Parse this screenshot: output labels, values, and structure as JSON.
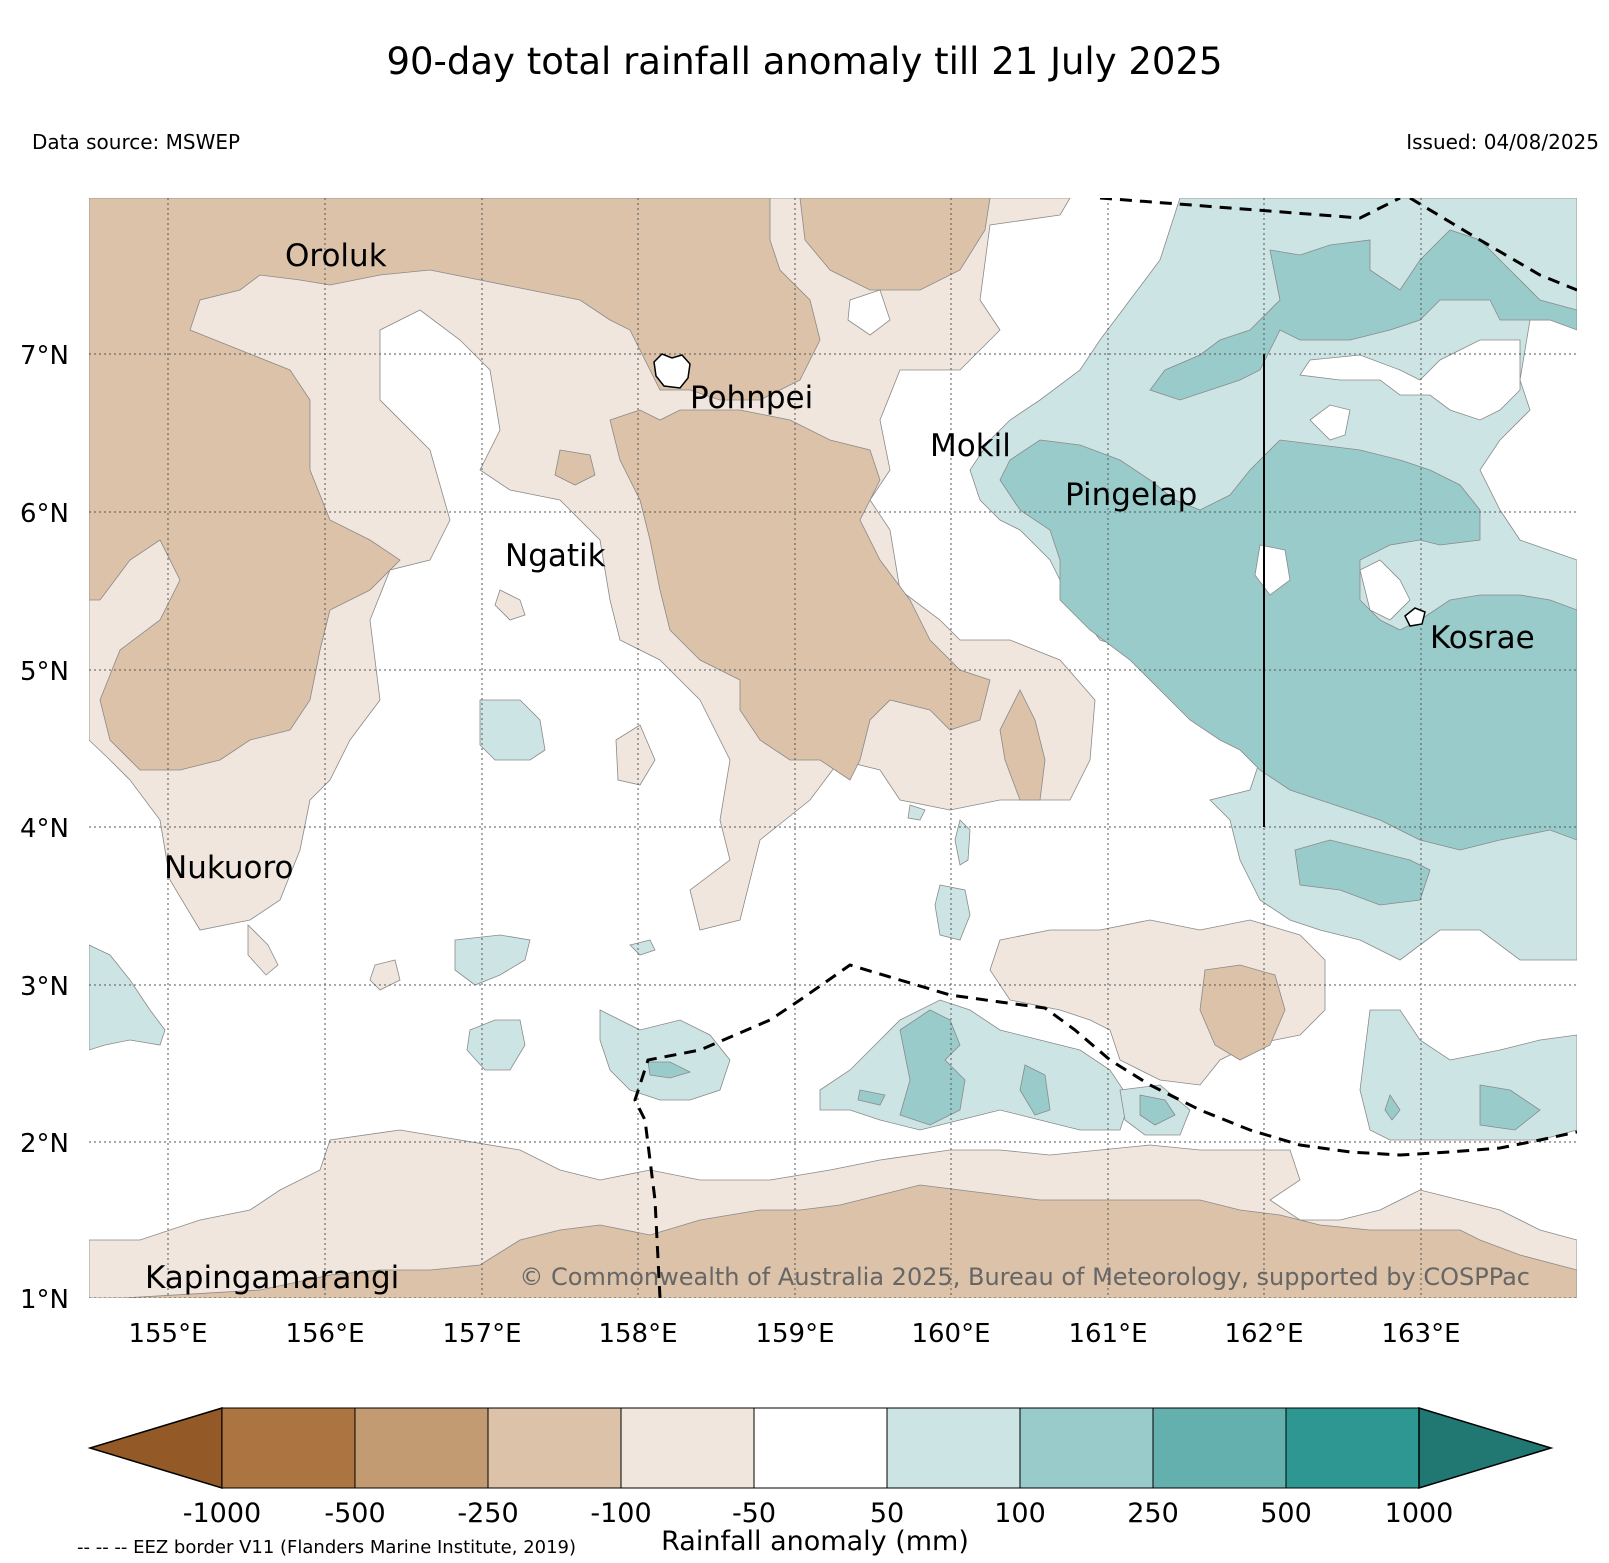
{
  "title": "90-day total rainfall anomaly till 21 July 2025",
  "data_source": "Data source: MSWEP",
  "issued": "Issued: 04/08/2025",
  "map": {
    "lat_labels": [
      "7°N",
      "6°N",
      "5°N",
      "4°N",
      "3°N",
      "2°N",
      "1°N"
    ],
    "lon_labels": [
      "155°E",
      "156°E",
      "157°E",
      "158°E",
      "159°E",
      "160°E",
      "161°E",
      "162°E",
      "163°E"
    ],
    "islands": [
      "Oroluk",
      "Pohnpei",
      "Mokil",
      "Pingelap",
      "Ngatik",
      "Kosrae",
      "Nukuoro",
      "Kapingamarangi"
    ],
    "copyright": "© Commonwealth of Australia 2025, Bureau of Meteorology, supported by COSPPac"
  },
  "colorbar": {
    "title": "Rainfall anomaly (mm)",
    "ticks": [
      "-1000",
      "-500",
      "-250",
      "-100",
      "-50",
      "50",
      "100",
      "250",
      "500",
      "1000"
    ],
    "colors": [
      "#935a27",
      "#ab7440",
      "#c39b72",
      "#dbc2a8",
      "#f0e6dd",
      "#ffffff",
      "#cce5e4",
      "#99cbca",
      "#63b0ae",
      "#2e9792",
      "#217873"
    ],
    "eez_note": "-- -- -- EEZ border V11 (Flanders Marine Institute, 2019)"
  }
}
